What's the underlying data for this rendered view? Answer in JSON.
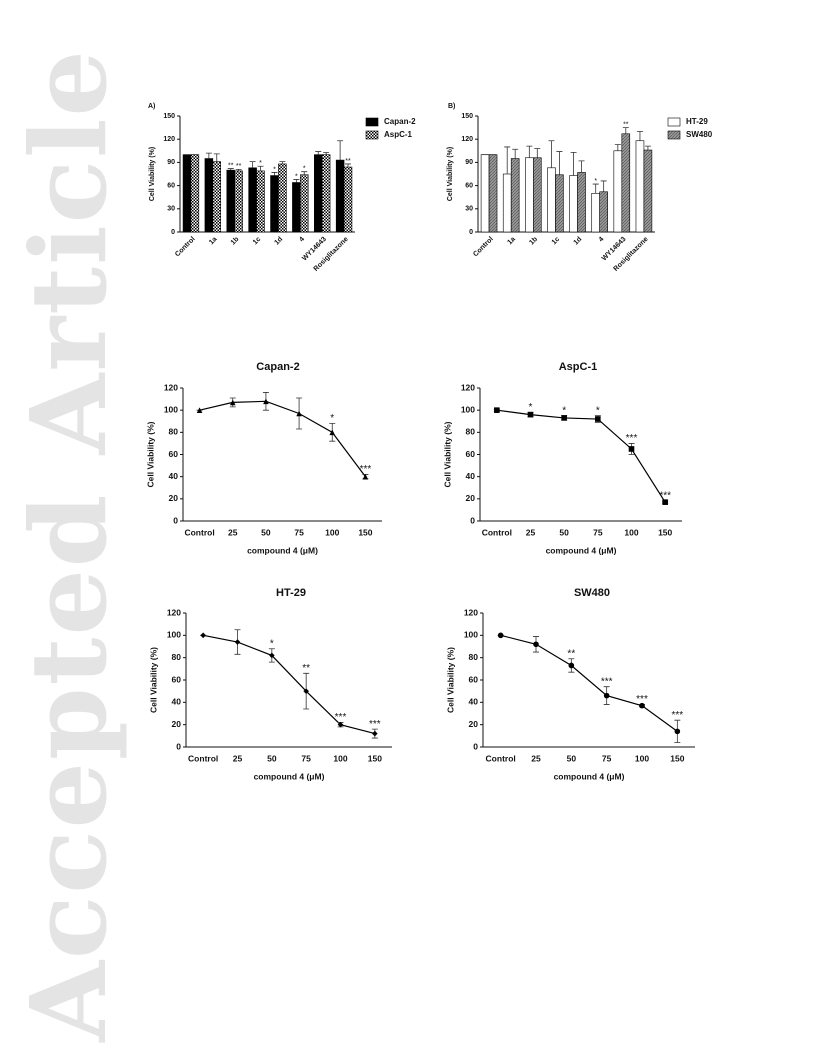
{
  "watermark": "Accepted Article",
  "chart_data": [
    {
      "type": "bar",
      "label": "A)",
      "ylabel": "Cell Viability (%)",
      "categories": [
        "Control",
        "1a",
        "1b",
        "1c",
        "1d",
        "4",
        "WY14643",
        "Rosiglitazone"
      ],
      "ylim": [
        0,
        150
      ],
      "yticks": [
        0,
        30,
        60,
        90,
        120,
        150
      ],
      "series": [
        {
          "name": "Capan-2",
          "color": "#000000",
          "pattern": "solid",
          "values": [
            100,
            95,
            80,
            83,
            73,
            64,
            100,
            93
          ],
          "errors": [
            0,
            7,
            2,
            8,
            4,
            4,
            4,
            25
          ],
          "significance": [
            null,
            null,
            "**",
            null,
            "*",
            "*",
            null,
            null
          ]
        },
        {
          "name": "AspC-1",
          "color": "#000000",
          "pattern": "checker",
          "values": [
            100,
            91,
            79,
            79,
            88,
            74,
            100,
            84
          ],
          "errors": [
            0,
            10,
            2,
            6,
            3,
            4,
            3,
            4
          ],
          "significance": [
            null,
            null,
            "**",
            "*",
            null,
            "*",
            null,
            "**"
          ]
        }
      ]
    },
    {
      "type": "bar",
      "label": "B)",
      "ylabel": "Cell Viability (%)",
      "categories": [
        "Control",
        "1a",
        "1b",
        "1c",
        "1d",
        "4",
        "WY14643",
        "Rosiglitazone"
      ],
      "ylim": [
        0,
        150
      ],
      "yticks": [
        0,
        30,
        60,
        90,
        120,
        150
      ],
      "series": [
        {
          "name": "HT-29",
          "color": "#ffffff",
          "pattern": "solid",
          "values": [
            100,
            75,
            96,
            83,
            73,
            50,
            105,
            118
          ],
          "errors": [
            0,
            35,
            15,
            35,
            30,
            12,
            8,
            12
          ],
          "significance": [
            null,
            null,
            null,
            null,
            null,
            "*",
            null,
            null
          ]
        },
        {
          "name": "SW480",
          "color": "#999999",
          "pattern": "hatch",
          "values": [
            100,
            95,
            96,
            74,
            77,
            52,
            127,
            106
          ],
          "errors": [
            0,
            12,
            12,
            30,
            15,
            14,
            8,
            5
          ],
          "significance": [
            null,
            null,
            null,
            null,
            null,
            null,
            "**",
            null
          ]
        }
      ]
    },
    {
      "type": "line",
      "title": "Capan-2",
      "ylabel": "Cell Viability (%)",
      "xlabel": "compound 4 (μM)",
      "marker": "triangle",
      "color": "#000000",
      "categories": [
        "Control",
        "25",
        "50",
        "75",
        "100",
        "150"
      ],
      "ylim": [
        0,
        120
      ],
      "yticks": [
        0,
        20,
        40,
        60,
        80,
        100,
        120
      ],
      "values": [
        100,
        107,
        108,
        97,
        80,
        40
      ],
      "errors": [
        0,
        4,
        8,
        14,
        8,
        2
      ],
      "significance": [
        null,
        null,
        null,
        null,
        "*",
        "***"
      ]
    },
    {
      "type": "line",
      "title": "AspC-1",
      "ylabel": "Cell Viability (%)",
      "xlabel": "compound 4 (μM)",
      "marker": "square",
      "color": "#000000",
      "categories": [
        "Control",
        "25",
        "50",
        "75",
        "100",
        "150"
      ],
      "ylim": [
        0,
        120
      ],
      "yticks": [
        0,
        20,
        40,
        60,
        80,
        100,
        120
      ],
      "values": [
        100,
        96,
        93,
        92,
        65,
        17
      ],
      "errors": [
        1,
        2,
        2,
        3,
        5,
        1
      ],
      "significance": [
        null,
        "*",
        "*",
        "*",
        "***",
        "***"
      ]
    },
    {
      "type": "line",
      "title": "HT-29",
      "ylabel": "Cell Viability (%)",
      "xlabel": "compound 4 (μM)",
      "marker": "diamond",
      "color": "#000000",
      "categories": [
        "Control",
        "25",
        "50",
        "75",
        "100",
        "150"
      ],
      "ylim": [
        0,
        120
      ],
      "yticks": [
        0,
        20,
        40,
        60,
        80,
        100,
        120
      ],
      "values": [
        100,
        94,
        82,
        50,
        20,
        12
      ],
      "errors": [
        0,
        11,
        6,
        16,
        2,
        4
      ],
      "significance": [
        null,
        null,
        "*",
        "**",
        "***",
        "***"
      ]
    },
    {
      "type": "line",
      "title": "SW480",
      "ylabel": "Cell Viability (%)",
      "xlabel": "compound 4 (μM)",
      "marker": "circle",
      "color": "#000000",
      "categories": [
        "Control",
        "25",
        "50",
        "75",
        "100",
        "150"
      ],
      "ylim": [
        0,
        120
      ],
      "yticks": [
        0,
        20,
        40,
        60,
        80,
        100,
        120
      ],
      "values": [
        100,
        92,
        73,
        46,
        37,
        14
      ],
      "errors": [
        0,
        7,
        6,
        8,
        1,
        10
      ],
      "significance": [
        null,
        null,
        "**",
        "***",
        "***",
        "***"
      ]
    }
  ]
}
